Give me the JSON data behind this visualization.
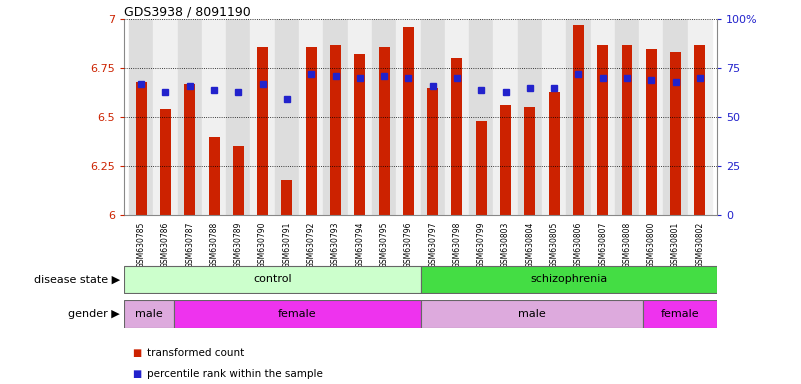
{
  "title": "GDS3938 / 8091190",
  "samples": [
    "GSM630785",
    "GSM630786",
    "GSM630787",
    "GSM630788",
    "GSM630789",
    "GSM630790",
    "GSM630791",
    "GSM630792",
    "GSM630793",
    "GSM630794",
    "GSM630795",
    "GSM630796",
    "GSM630797",
    "GSM630798",
    "GSM630799",
    "GSM630803",
    "GSM630804",
    "GSM630805",
    "GSM630806",
    "GSM630807",
    "GSM630808",
    "GSM630800",
    "GSM630801",
    "GSM630802"
  ],
  "bar_values": [
    6.68,
    6.54,
    6.67,
    6.4,
    6.35,
    6.86,
    6.18,
    6.86,
    6.87,
    6.82,
    6.86,
    6.96,
    6.65,
    6.8,
    6.48,
    6.56,
    6.55,
    6.63,
    6.97,
    6.87,
    6.87,
    6.85,
    6.83,
    6.87
  ],
  "percentile_values": [
    67,
    63,
    66,
    64,
    63,
    67,
    59,
    72,
    71,
    70,
    71,
    70,
    66,
    70,
    64,
    63,
    65,
    65,
    72,
    70,
    70,
    69,
    68,
    70
  ],
  "ylim_left": [
    6.0,
    7.0
  ],
  "ylim_right": [
    0,
    100
  ],
  "bar_color": "#cc2200",
  "marker_color": "#2222cc",
  "disease_control_color": "#ccffcc",
  "disease_schizo_color": "#44dd44",
  "gender_male_color": "#ddaadd",
  "gender_female_color": "#ee33ee",
  "legend_bar_label": "transformed count",
  "legend_marker_label": "percentile rank within the sample",
  "yticks_left": [
    6.0,
    6.25,
    6.5,
    6.75,
    7.0
  ],
  "yticks_right": [
    0,
    25,
    50,
    75,
    100
  ],
  "col_bg_even": "#dddddd",
  "col_bg_odd": "#f0f0f0",
  "control_n": 12,
  "schizo_n": 12,
  "male1_n": 2,
  "female1_n": 10,
  "male2_n": 9,
  "female2_n": 3
}
